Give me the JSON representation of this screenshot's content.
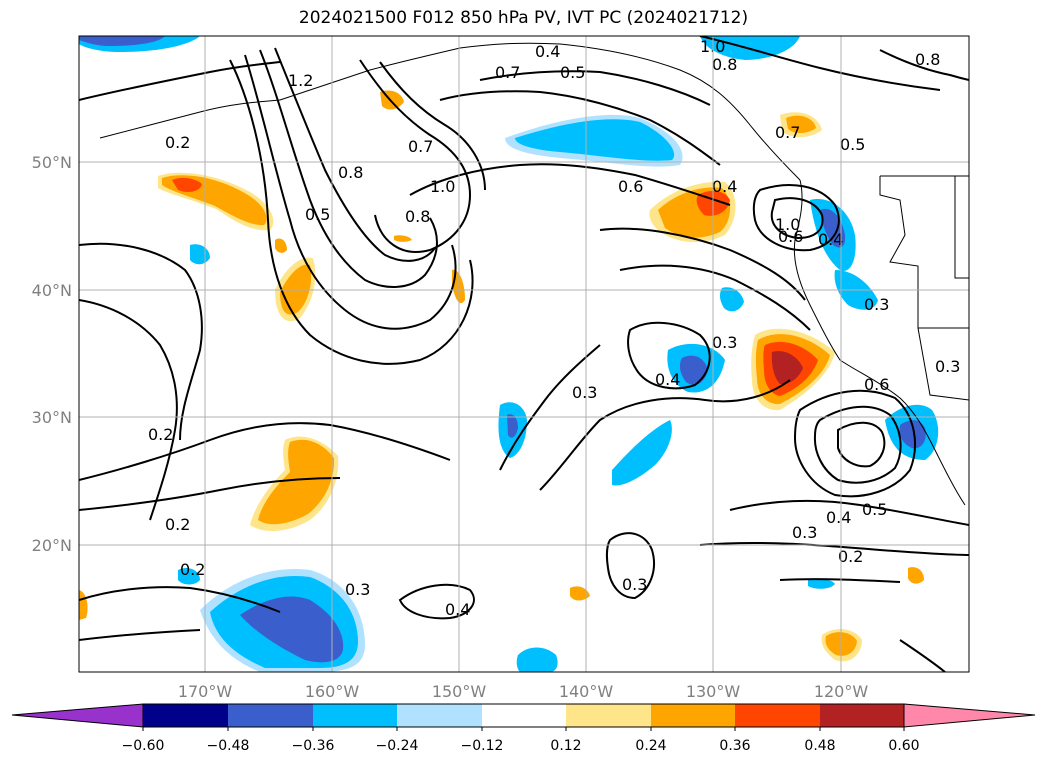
{
  "title": "2024021500 F012 850 hPa PV, IVT PC (2024021712)",
  "map": {
    "lon_labels": [
      "170°W",
      "160°W",
      "150°W",
      "140°W",
      "130°W",
      "120°W"
    ],
    "lat_labels": [
      "50°N",
      "40°N",
      "30°N",
      "20°N"
    ],
    "contour_labels": [
      "1.0",
      "0.4",
      "0.5",
      "0.7",
      "1.2",
      "1.0",
      "0.8",
      "0.2",
      "0.7",
      "0.8",
      "0.5",
      "1.0",
      "0.8",
      "0.6",
      "0.4",
      "0.7",
      "0.6",
      "0.4",
      "0.3",
      "0.3",
      "0.4",
      "0.3",
      "0.6",
      "0.3",
      "0.4",
      "0.5",
      "0.3",
      "0.2",
      "0.2",
      "0.2",
      "0.2",
      "0.3",
      "0.3",
      "0.4",
      "0.8",
      "0.5"
    ]
  },
  "colorbar": {
    "ticks": [
      "−0.60",
      "−0.48",
      "−0.36",
      "−0.24",
      "−0.12",
      "0.12",
      "0.24",
      "0.36",
      "0.48",
      "0.60"
    ],
    "colors": [
      "#9932cc",
      "#00008b",
      "#3a5fcd",
      "#00bfff",
      "#b0e2ff",
      "#ffffff",
      "#ffe58a",
      "#ffa500",
      "#ff4500",
      "#b22222",
      "#ff88aa"
    ]
  },
  "shading_colors": {
    "light_blue": "#b0e2ff",
    "blue": "#00bfff",
    "royal_blue": "#3a5fcd",
    "light_yellow": "#ffe58a",
    "orange": "#ffa500",
    "red_orange": "#ff4500",
    "firebrick": "#b22222"
  }
}
